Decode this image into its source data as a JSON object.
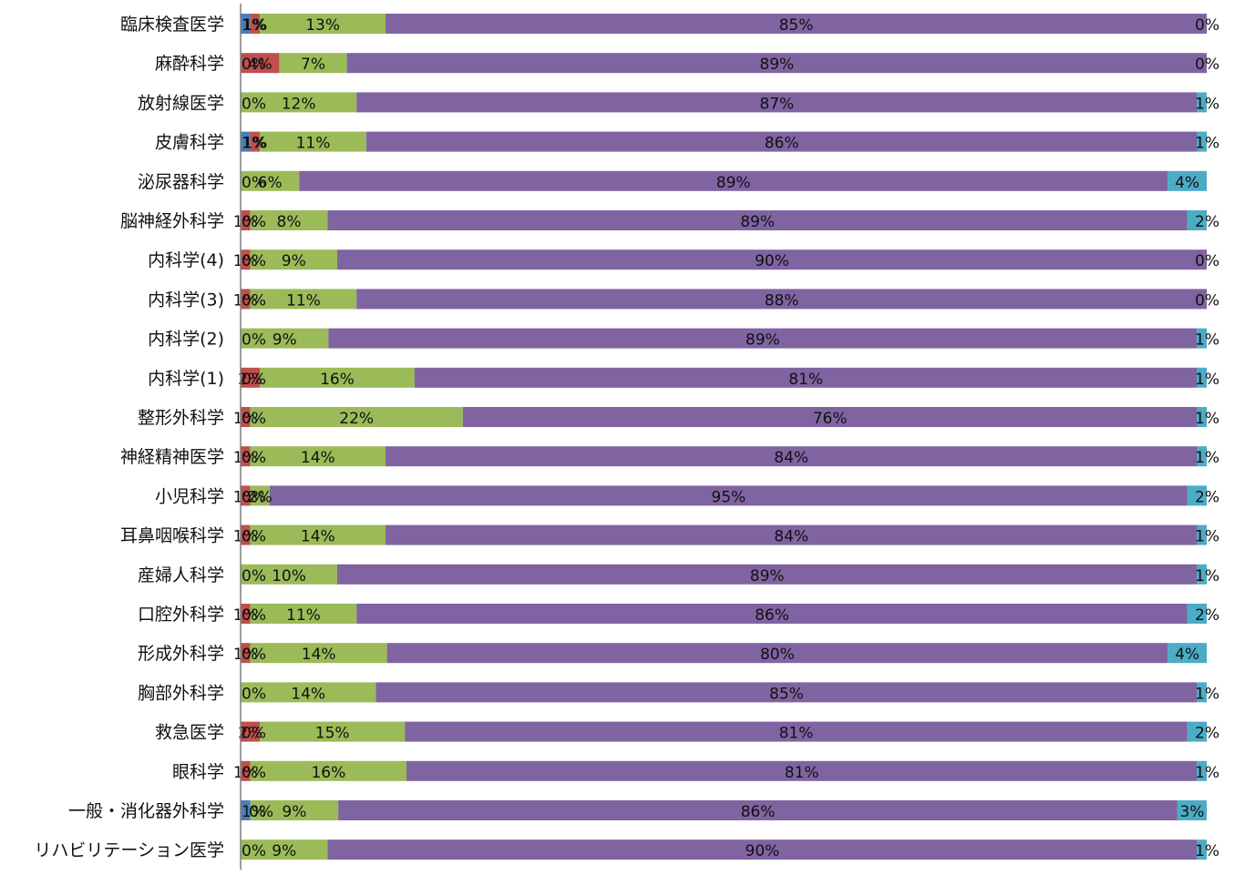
{
  "chart_data": {
    "type": "bar",
    "orientation": "horizontal",
    "stacked": "percent",
    "categories": [
      "臨床検査医学",
      "麻酔科学",
      "放射線医学",
      "皮膚科学",
      "泌尿器科学",
      "脳神経外科学",
      "内科学(4)",
      "内科学(3)",
      "内科学(2)",
      "内科学(1)",
      "整形外科学",
      "神経精神医学",
      "小児科学",
      "耳鼻咽喉科学",
      "産婦人科学",
      "口腔外科学",
      "形成外科学",
      "胸部外科学",
      "救急医学",
      "眼科学",
      "一般・消化器外科学",
      "リハビリテーション医学"
    ],
    "series": [
      {
        "values": [
          1,
          0,
          0,
          1,
          0,
          0,
          0,
          0,
          0,
          0,
          0,
          0,
          0,
          0,
          0,
          0,
          0,
          0,
          0,
          0,
          1,
          0
        ],
        "labels": [
          "1%",
          "0%",
          "0%",
          "1%",
          "0%",
          "0%",
          "0%",
          "0%",
          "0%",
          "0%",
          "0%",
          "0%",
          "0%",
          "0%",
          "0%",
          "0%",
          "0%",
          "0%",
          "0%",
          "0%",
          "1%",
          "0%"
        ]
      },
      {
        "values": [
          1,
          4,
          0,
          1,
          0,
          1,
          1,
          1,
          0,
          2,
          1,
          1,
          1,
          1,
          0,
          1,
          1,
          0,
          2,
          1,
          0,
          0
        ],
        "labels": [
          "1%",
          "4%",
          "",
          "1%",
          "",
          "1%",
          "1%",
          "1%",
          "",
          "2%",
          "1%",
          "1%",
          "1%",
          "1%",
          "",
          "1%",
          "1%",
          "",
          "2%",
          "1%",
          "0%",
          ""
        ]
      },
      {
        "values": [
          13,
          7,
          12,
          11,
          6,
          8,
          9,
          11,
          9,
          16,
          22,
          14,
          2,
          14,
          10,
          11,
          14,
          14,
          15,
          16,
          9,
          9
        ],
        "labels": [
          "13%",
          "7%",
          "12%",
          "11%",
          "6%",
          "8%",
          "9%",
          "11%",
          "9%",
          "16%",
          "22%",
          "14%",
          "2%",
          "14%",
          "10%",
          "11%",
          "14%",
          "14%",
          "15%",
          "16%",
          "9%",
          "9%"
        ]
      },
      {
        "values": [
          85,
          89,
          87,
          86,
          89,
          89,
          90,
          88,
          89,
          81,
          76,
          84,
          95,
          84,
          89,
          86,
          80,
          85,
          81,
          81,
          86,
          90
        ],
        "labels": [
          "85%",
          "89%",
          "87%",
          "86%",
          "89%",
          "89%",
          "90%",
          "88%",
          "89%",
          "81%",
          "76%",
          "84%",
          "95%",
          "84%",
          "89%",
          "86%",
          "80%",
          "85%",
          "81%",
          "81%",
          "86%",
          "90%"
        ]
      },
      {
        "values": [
          0,
          0,
          1,
          1,
          4,
          2,
          0,
          0,
          1,
          1,
          1,
          1,
          2,
          1,
          1,
          2,
          4,
          1,
          2,
          1,
          3,
          1
        ],
        "labels": [
          "0%",
          "0%",
          "1%",
          "1%",
          "4%",
          "2%",
          "0%",
          "0%",
          "1%",
          "1%",
          "1%",
          "1%",
          "2%",
          "1%",
          "1%",
          "2%",
          "4%",
          "1%",
          "2%",
          "1%",
          "3%",
          "1%"
        ]
      }
    ],
    "colors": [
      "#4a7ebb",
      "#c0504d",
      "#9bbb59",
      "#8064a2",
      "#4bacc6"
    ],
    "xlim": [
      0,
      100
    ],
    "grid": false,
    "legend": "none"
  }
}
